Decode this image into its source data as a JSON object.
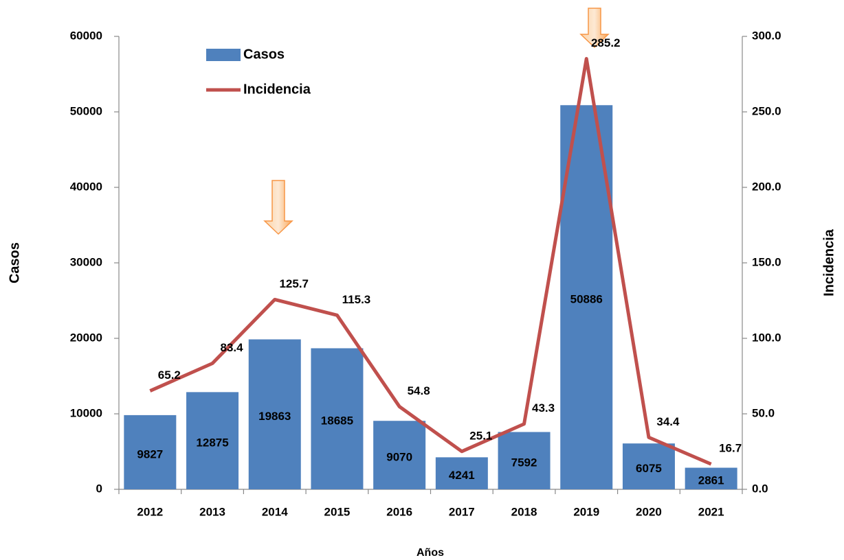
{
  "chart_data": {
    "type": "bar_line",
    "categories": [
      "2012",
      "2013",
      "2014",
      "2015",
      "2016",
      "2017",
      "2018",
      "2019",
      "2020",
      "2021"
    ],
    "series": [
      {
        "name": "Casos",
        "type": "bar",
        "color": "#4f81bd",
        "values": [
          9827,
          12875,
          19863,
          18685,
          9070,
          4241,
          7592,
          50886,
          6075,
          2861
        ]
      },
      {
        "name": "Incidencia",
        "type": "line",
        "axis": "y2",
        "color": "#c0504d",
        "values": [
          65.2,
          83.4,
          125.7,
          115.3,
          54.8,
          25.1,
          43.3,
          285.2,
          34.4,
          16.7
        ]
      }
    ],
    "xlabel": "Años",
    "ylabel": "Casos",
    "y2label": "Incidencia",
    "ylim": [
      0,
      60000
    ],
    "yticks": [
      0,
      10000,
      20000,
      30000,
      40000,
      50000,
      60000
    ],
    "y2lim": [
      0,
      300
    ],
    "y2ticks": [
      {
        "value": 0,
        "label": "0.0"
      },
      {
        "value": 50,
        "label": "50.0"
      },
      {
        "value": 100,
        "label": "100.0"
      },
      {
        "value": 150,
        "label": "150.0"
      },
      {
        "value": 200,
        "label": "200.0"
      },
      {
        "value": 250,
        "label": "250.0"
      },
      {
        "value": 300,
        "label": "300.0"
      }
    ],
    "legend": "upper left"
  }
}
